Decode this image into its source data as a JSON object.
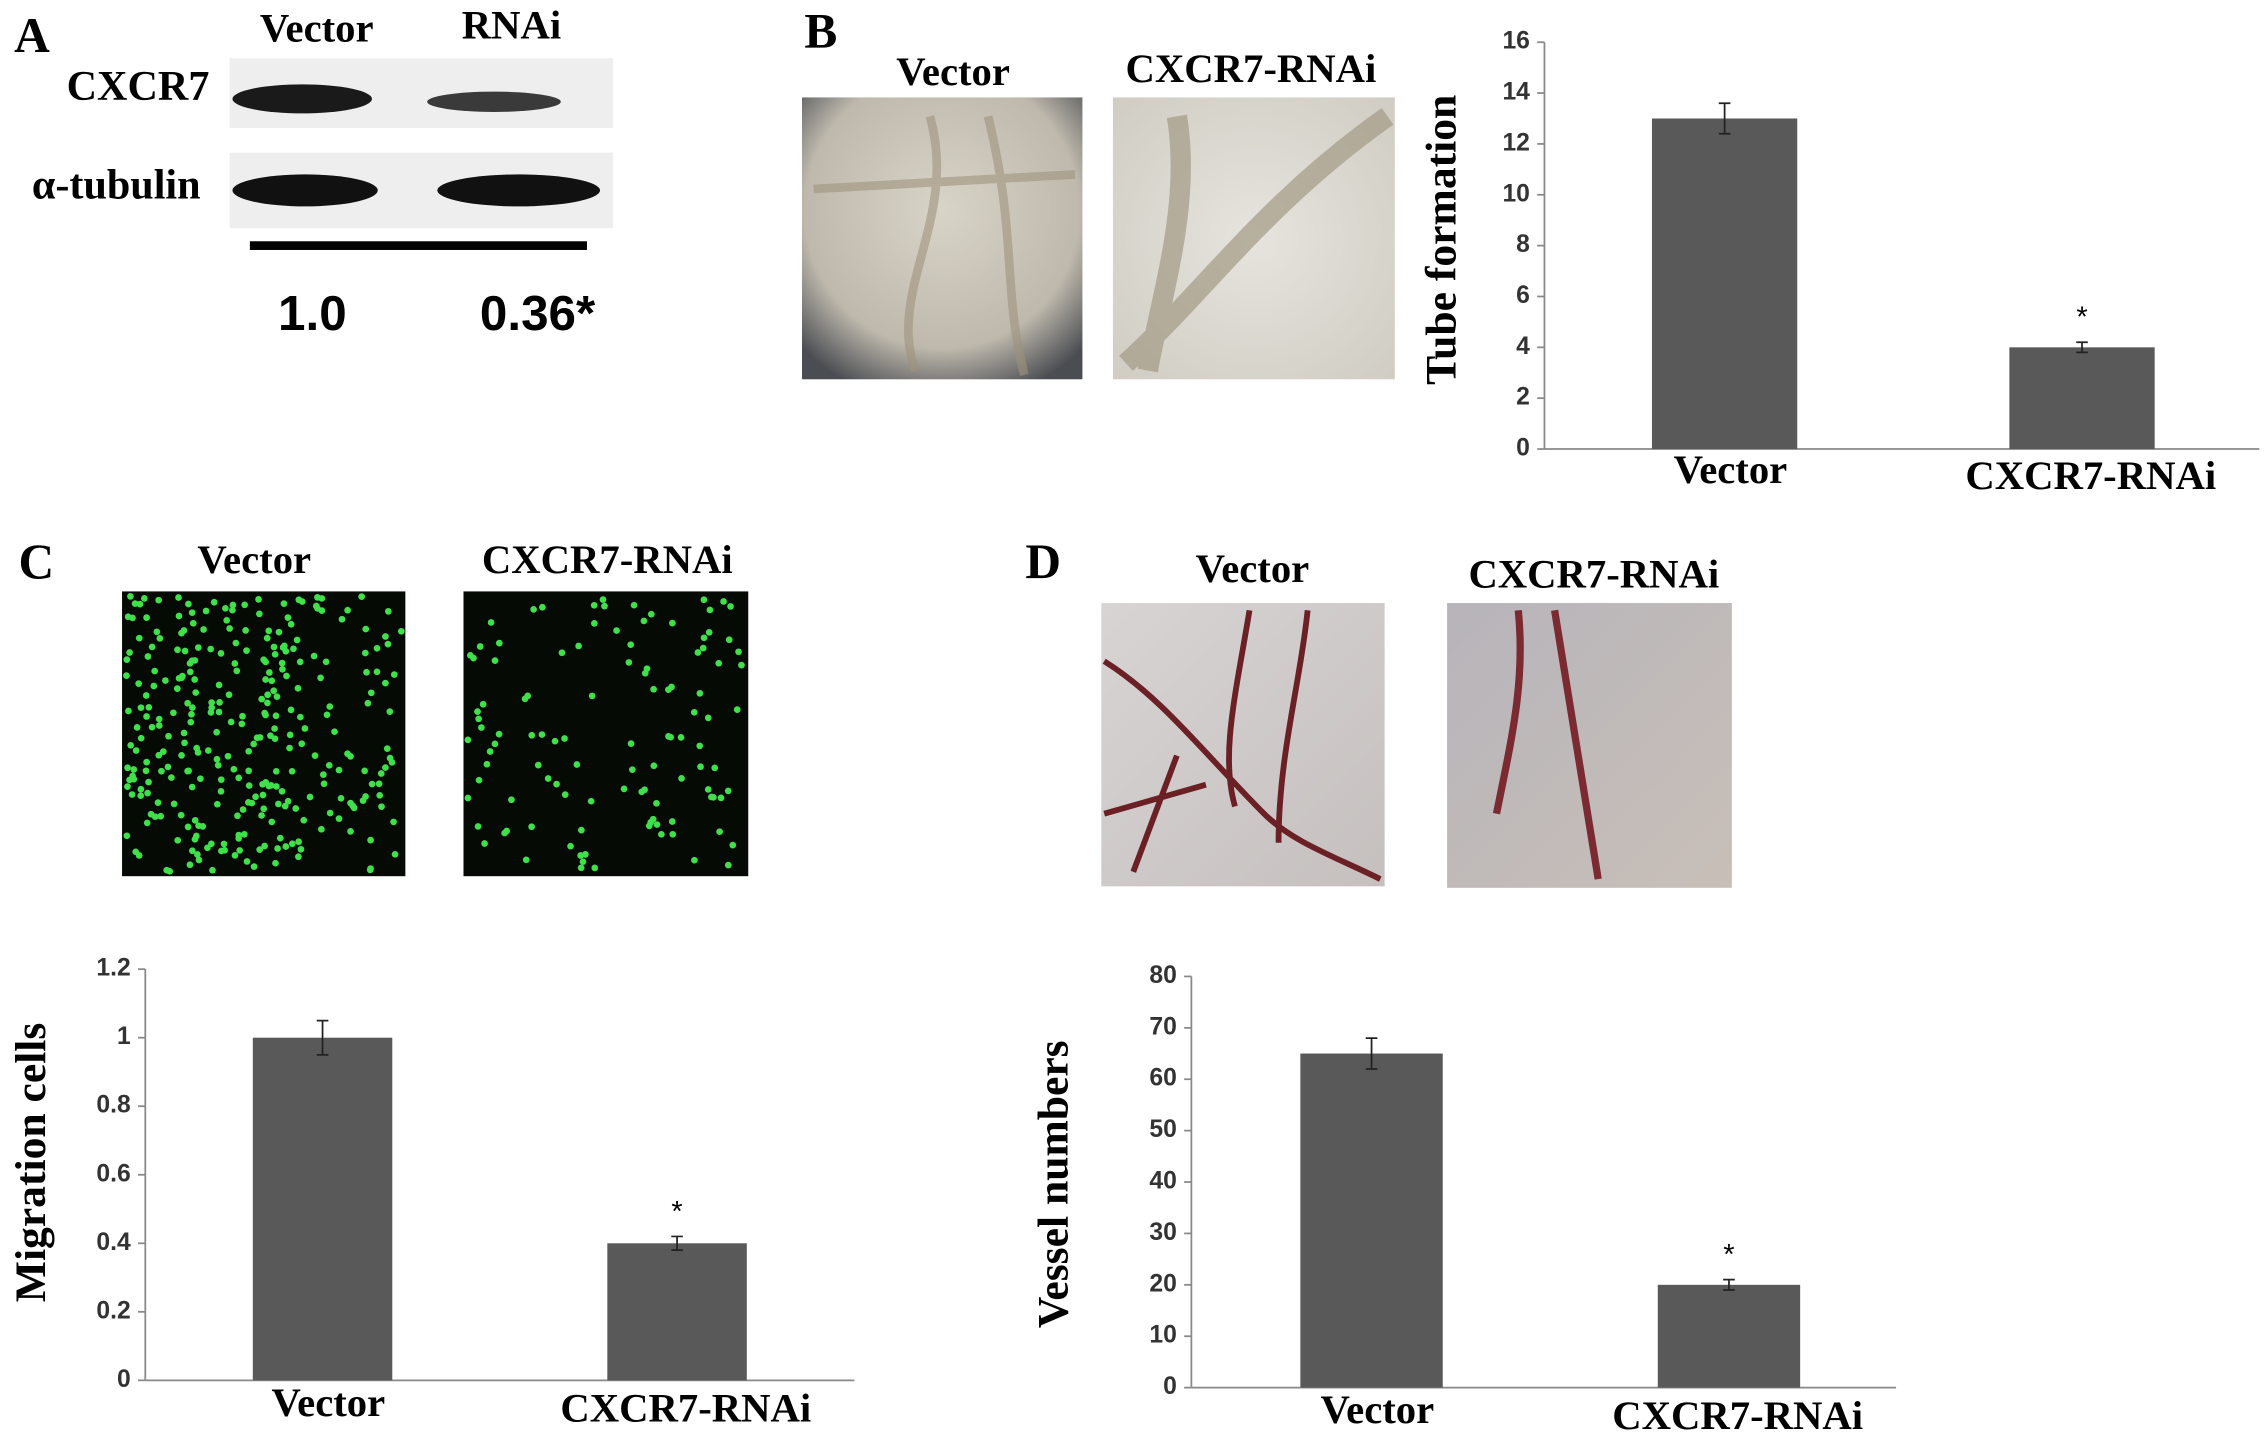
{
  "figure": {
    "panel_labels": [
      "A",
      "B",
      "C",
      "D"
    ],
    "blot": {
      "lanes": [
        "Vector",
        "RNAi"
      ],
      "rows": [
        "CXCR7",
        "α-tubulin"
      ],
      "quantification": [
        "1.0",
        "0.36*"
      ]
    },
    "image_titles": {
      "B": [
        "Vector",
        "CXCR7-RNAi"
      ],
      "C": [
        "Vector",
        "CXCR7-RNAi"
      ],
      "D": [
        "Vector",
        "CXCR7-RNAi"
      ]
    }
  },
  "chart_data": [
    {
      "type": "bar",
      "ylabel": "Tube formation",
      "categories": [
        "Vector",
        "CXCR7-RNAi"
      ],
      "values": [
        13,
        4
      ],
      "errors": [
        0.6,
        0.2
      ],
      "color": "#595959",
      "ylim": [
        0,
        16
      ],
      "yticks": [
        0,
        2,
        4,
        6,
        8,
        10,
        12,
        14,
        16
      ],
      "annotations": [
        {
          "text": "*",
          "x": "CXCR7-RNAi"
        }
      ]
    },
    {
      "type": "bar",
      "ylabel": "Migration cells",
      "categories": [
        "Vector",
        "CXCR7-RNAi"
      ],
      "values": [
        1,
        0.4
      ],
      "errors": [
        0.05,
        0.02
      ],
      "color": "#595959",
      "ylim": [
        0,
        1.2
      ],
      "yticks": [
        0,
        0.2,
        0.4,
        0.6,
        0.8,
        1,
        1.2
      ],
      "annotations": [
        {
          "text": "*",
          "x": "CXCR7-RNAi"
        }
      ]
    },
    {
      "type": "bar",
      "ylabel": "Vessel numbers",
      "categories": [
        "Vector",
        "CXCR7-RNAi"
      ],
      "values": [
        65,
        20
      ],
      "errors": [
        3,
        1
      ],
      "color": "#595959",
      "ylim": [
        0,
        80
      ],
      "yticks": [
        0,
        10,
        20,
        30,
        40,
        50,
        60,
        70,
        80
      ],
      "annotations": [
        {
          "text": "*",
          "x": "CXCR7-RNAi"
        }
      ]
    }
  ]
}
